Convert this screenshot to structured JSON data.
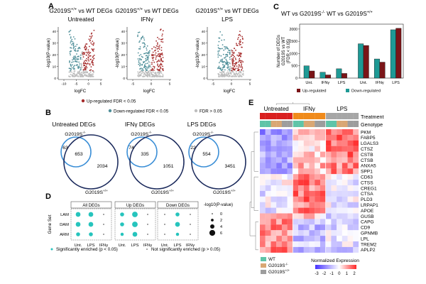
{
  "panels": {
    "A": {
      "letter": "A",
      "plots": [
        {
          "title_geno": "G2019S",
          "title_sup": "+/+",
          "title_rest": " vs WT DEGs",
          "treatment": "Untreated"
        },
        {
          "title_geno": "G2019S",
          "title_sup": "+/+",
          "title_rest": " vs WT DEGs",
          "treatment": "IFNγ"
        },
        {
          "title_geno": "G2019S",
          "title_sup": "+/+",
          "title_rest": " vs WT DEGs",
          "treatment": "LPS"
        }
      ],
      "ylabel": "-log10(P-value)",
      "xlabel": "logFC",
      "yticks": [
        "40",
        "30",
        "20",
        "10",
        "0"
      ],
      "xticks": [
        "-5",
        "0",
        "5"
      ],
      "xticks_alt": [
        "-10",
        "-5",
        "0",
        "5"
      ],
      "legend": [
        {
          "label": "Up-regulated FDR < 0.05",
          "color": "#a52a2a"
        },
        {
          "label": "Down-regulated FDR < 0.05",
          "color": "#4f8f99"
        },
        {
          "label": "FDR > 0.05",
          "color": "#bdbdbd"
        }
      ]
    },
    "B": {
      "letter": "B",
      "venns": [
        {
          "title": "Untreated DEGs",
          "left": "63",
          "mid": "653",
          "right": "2034"
        },
        {
          "title": "IFNγ DEGs",
          "left": "74",
          "mid": "335",
          "right": "1051"
        },
        {
          "title": "LPS DEGs",
          "left": "22",
          "mid": "554",
          "right": "3451"
        }
      ],
      "small_label_geno": "G2019S",
      "small_label_sup": "-/-",
      "big_label_geno": "G2019S",
      "big_label_sup": "+/+"
    },
    "C": {
      "letter": "C",
      "title_a": "WT vs G2019S",
      "title_a_sup": "-/-",
      "title_b": " WT vs G2019S",
      "title_b_sup": "+/+",
      "ylabel_lines": [
        "Number of DEGs",
        "G2019S vs WT",
        "(FDR < 0.05)"
      ],
      "yticks": [
        "2000",
        "1500",
        "1000",
        "500",
        "0"
      ],
      "xticks": [
        "Unt.",
        "IFNγ",
        "LPS",
        "Unt.",
        "IFNγ",
        "LPS"
      ],
      "legend": [
        {
          "label": "Up-regulated",
          "color": "#7b1518"
        },
        {
          "label": "Down-regulated",
          "color": "#1e9a95"
        }
      ]
    },
    "D": {
      "letter": "D",
      "ylabel": "Gene Set",
      "groups": [
        "All DEGs",
        "Up DEGs",
        "Down DEGs"
      ],
      "rows": [
        "LAM",
        "DAM",
        "ARM"
      ],
      "xticks": [
        "Unt.",
        "LPS",
        "IFNγ",
        "Unt.",
        "LPS",
        "IFNγ",
        "Unt.",
        "LPS",
        "IFNγ"
      ],
      "size_legend_title": "-log10(P-value)",
      "size_legend": [
        "0",
        "2",
        "4",
        "6"
      ],
      "legend_sig": "Significantly enriched (p < 0.05)",
      "legend_nonsig": "Not significantly enriched (p > 0.05)"
    },
    "E": {
      "letter": "E",
      "groups": [
        "Untreated",
        "IFNγ",
        "LPS"
      ],
      "row_label_treatment": "Treatment",
      "row_label_genotype": "Genotype",
      "genes": [
        "PKM",
        "FABP5",
        "LGALS3",
        "CTSZ",
        "CSTB",
        "CTSB",
        "ANXA5",
        "SPP1",
        "CD63",
        "CTSS",
        "CREG1",
        "CTSA",
        "PLD3",
        "LRPAP1",
        "APOE",
        "GUSB",
        "CAPG",
        "CD9",
        "GPNMB",
        "LPL",
        "TREM2",
        "APLP2"
      ],
      "genotype_legend": [
        {
          "label": "WT",
          "sup": "",
          "color": "#5fc4a8"
        },
        {
          "label": "G2019S",
          "sup": "-/-",
          "color": "#d9a774"
        },
        {
          "label": "G2019S",
          "sup": "+/+",
          "color": "#9d9d9d"
        }
      ],
      "scale_title": "Normalized Expression",
      "scale_ticks": [
        "-3",
        "-2",
        "-1",
        "0",
        "1",
        "2"
      ]
    }
  },
  "chart_data": [
    {
      "type": "bar",
      "title": "WT vs G2019S-/- and WT vs G2019S+/+",
      "categories": [
        "Unt.",
        "IFNγ",
        "LPS",
        "Unt.",
        "IFNγ",
        "LPS"
      ],
      "series": [
        {
          "name": "Down-regulated",
          "values": [
            500,
            240,
            380,
            1400,
            780,
            1970
          ]
        },
        {
          "name": "Up-regulated",
          "values": [
            290,
            130,
            190,
            1330,
            650,
            2030
          ]
        }
      ],
      "ylabel": "Number of DEGs G2019S vs WT (FDR < 0.05)",
      "ylim": [
        0,
        2200
      ]
    },
    {
      "type": "scatter",
      "title": "Gene set enrichment",
      "rows": [
        "LAM",
        "DAM",
        "ARM"
      ],
      "columns": [
        "All Unt.",
        "All LPS",
        "All IFNγ",
        "Up Unt.",
        "Up LPS",
        "Up IFNγ",
        "Down Unt.",
        "Down LPS",
        "Down IFNγ"
      ],
      "size_values": [
        [
          5,
          5,
          1,
          4,
          6,
          1,
          1,
          4,
          1
        ],
        [
          5,
          5,
          1,
          4,
          6,
          1,
          1,
          5,
          1
        ],
        [
          4,
          4,
          1,
          3,
          5,
          1,
          1,
          3,
          1
        ]
      ],
      "significant": [
        [
          1,
          1,
          0,
          1,
          1,
          0,
          0,
          1,
          0
        ],
        [
          1,
          1,
          0,
          1,
          1,
          0,
          0,
          1,
          0
        ],
        [
          1,
          1,
          0,
          1,
          1,
          0,
          0,
          1,
          0
        ]
      ]
    }
  ]
}
